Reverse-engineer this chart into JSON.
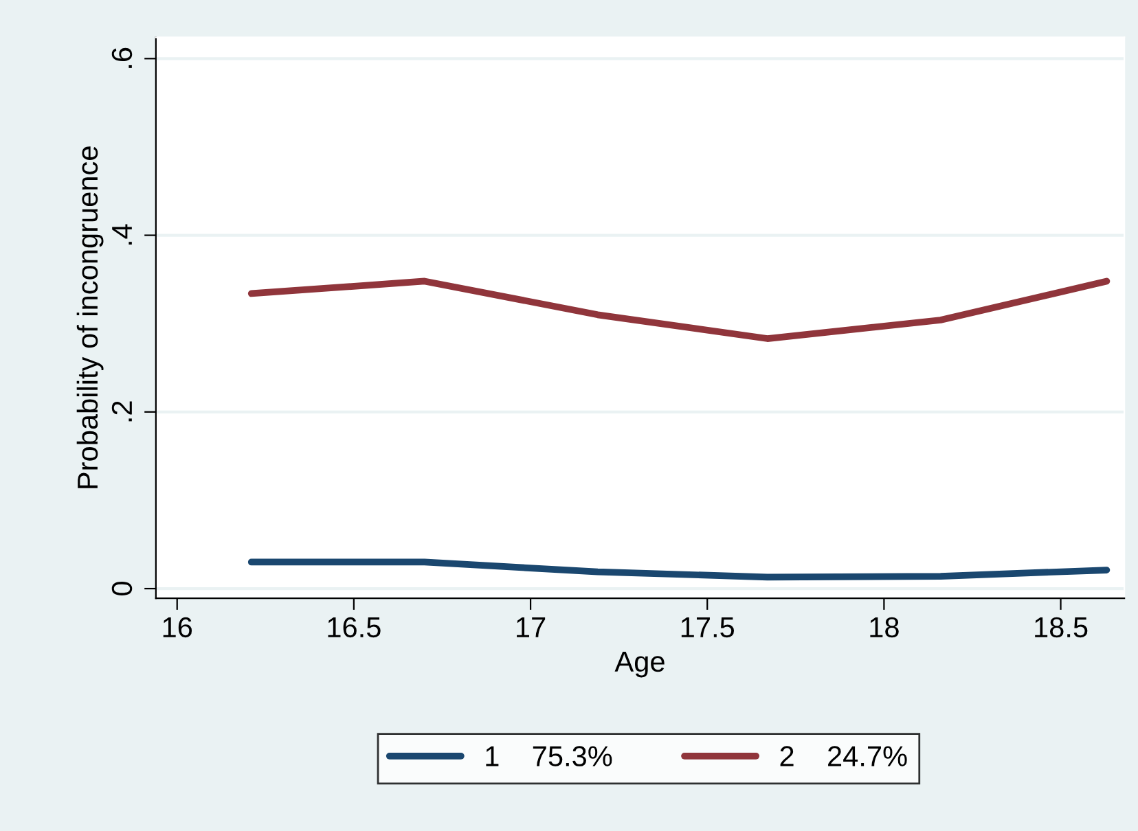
{
  "chart_data": {
    "type": "line",
    "xlabel": "Age",
    "ylabel": "Probability of incongruence",
    "x": [
      16.21,
      16.7,
      17.19,
      17.67,
      18.16,
      18.63
    ],
    "series": [
      {
        "name": "1    75.3%",
        "color": "#1a476f",
        "values": [
          0.03,
          0.03,
          0.019,
          0.013,
          0.014,
          0.021
        ]
      },
      {
        "name": "2    24.7%",
        "color": "#90353b",
        "values": [
          0.334,
          0.348,
          0.31,
          0.283,
          0.304,
          0.348
        ]
      }
    ],
    "xlim": [
      15.94,
      18.68
    ],
    "xticks": [
      16,
      16.5,
      17,
      17.5,
      18,
      18.5
    ],
    "ylim": [
      -0.011,
      0.624
    ],
    "yticks": [
      {
        "value": 0,
        "label": "0"
      },
      {
        "value": 0.2,
        "label": ".2"
      },
      {
        "value": 0.4,
        "label": ".4"
      },
      {
        "value": 0.6,
        "label": ".6"
      }
    ],
    "grid": "y",
    "legend": "bottom",
    "marker": "none",
    "line_style": "solid"
  }
}
